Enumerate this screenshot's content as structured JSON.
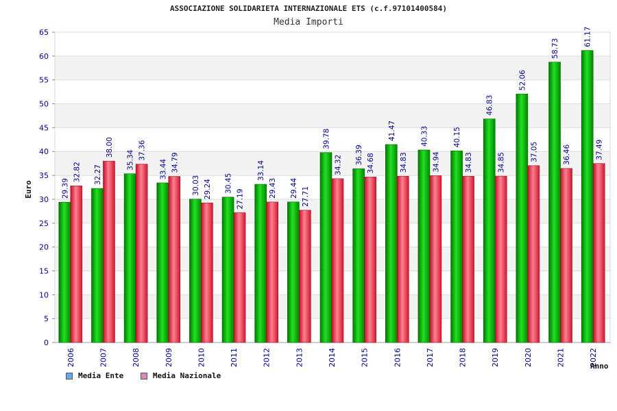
{
  "chart_data": {
    "type": "bar",
    "title": "ASSOCIAZIONE SOLIDARIETA INTERNAZIONALE ETS (c.f.97101400584)",
    "subtitle": "Media Importi",
    "xlabel": "Anno",
    "ylabel": "Euro",
    "ylim": [
      0,
      65
    ],
    "yticks": [
      "0",
      "5",
      "10",
      "15",
      "20",
      "25",
      "30",
      "35",
      "40",
      "45",
      "50",
      "55",
      "60",
      "65"
    ],
    "categories": [
      "2006",
      "2007",
      "2008",
      "2009",
      "2010",
      "2011",
      "2012",
      "2013",
      "2014",
      "2015",
      "2016",
      "2017",
      "2018",
      "2019",
      "2020",
      "2021",
      "2022"
    ],
    "series": [
      {
        "name": "Media Ente",
        "values": [
          29.39,
          32.27,
          35.34,
          33.44,
          30.03,
          30.45,
          33.14,
          29.44,
          39.78,
          36.39,
          41.47,
          40.33,
          40.15,
          46.83,
          52.06,
          58.73,
          61.17
        ],
        "labels": [
          "29.39",
          "32.27",
          "35.34",
          "33.44",
          "30.03",
          "30.45",
          "33.14",
          "29.44",
          "39.78",
          "36.39",
          "41.47",
          "40.33",
          "40.15",
          "46.83",
          "52.06",
          "58.73",
          "61.17"
        ],
        "color": "#00b000",
        "legend_color": "#66aaee"
      },
      {
        "name": "Media Nazionale",
        "values": [
          32.82,
          38.0,
          37.36,
          34.79,
          29.24,
          27.19,
          29.43,
          27.71,
          34.32,
          34.68,
          34.83,
          34.94,
          34.83,
          34.85,
          37.05,
          36.46,
          37.49
        ],
        "labels": [
          "32.82",
          "38.00",
          "37.36",
          "34.79",
          "29.24",
          "27.19",
          "29.43",
          "27.71",
          "34.32",
          "34.68",
          "34.83",
          "34.94",
          "34.83",
          "34.85",
          "37.05",
          "36.46",
          "37.49"
        ],
        "color": "#e83040",
        "legend_color": "#dd88bb"
      }
    ],
    "legend_position": "bottom-left",
    "grid": true
  }
}
